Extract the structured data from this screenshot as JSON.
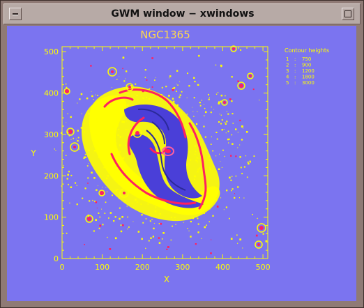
{
  "window": {
    "title": "GWM window − xwindows"
  },
  "title_buttons": {
    "menu": "window-menu",
    "maximize": "maximize"
  },
  "colors": {
    "background": "#7b74f0",
    "axes": "#ffff00",
    "contour_1": "#ffff00",
    "contour_2": "#ff2060",
    "contour_3": "#4a3fd8",
    "contour_4": "#2b2a9a",
    "contour_5": "#ff60a0",
    "title_text": "#ffd84a"
  },
  "chart_data": {
    "type": "contour",
    "title": "NGC1365",
    "xlabel": "X",
    "ylabel": "Y",
    "xlim": [
      0,
      512
    ],
    "ylim": [
      0,
      512
    ],
    "x_ticks": [
      0,
      100,
      200,
      300,
      400,
      500
    ],
    "y_ticks": [
      0,
      100,
      200,
      300,
      400,
      500
    ],
    "legend_title": "Contour heights",
    "legend_placement": "top-right",
    "contours": [
      {
        "level": "1",
        "separator": ":",
        "value": "750"
      },
      {
        "level": "2",
        "separator": ":",
        "value": "900"
      },
      {
        "level": "3",
        "separator": ":",
        "value": "1200"
      },
      {
        "level": "4",
        "separator": ":",
        "value": "1800"
      },
      {
        "level": "5",
        "separator": ":",
        "value": "3000"
      }
    ]
  }
}
